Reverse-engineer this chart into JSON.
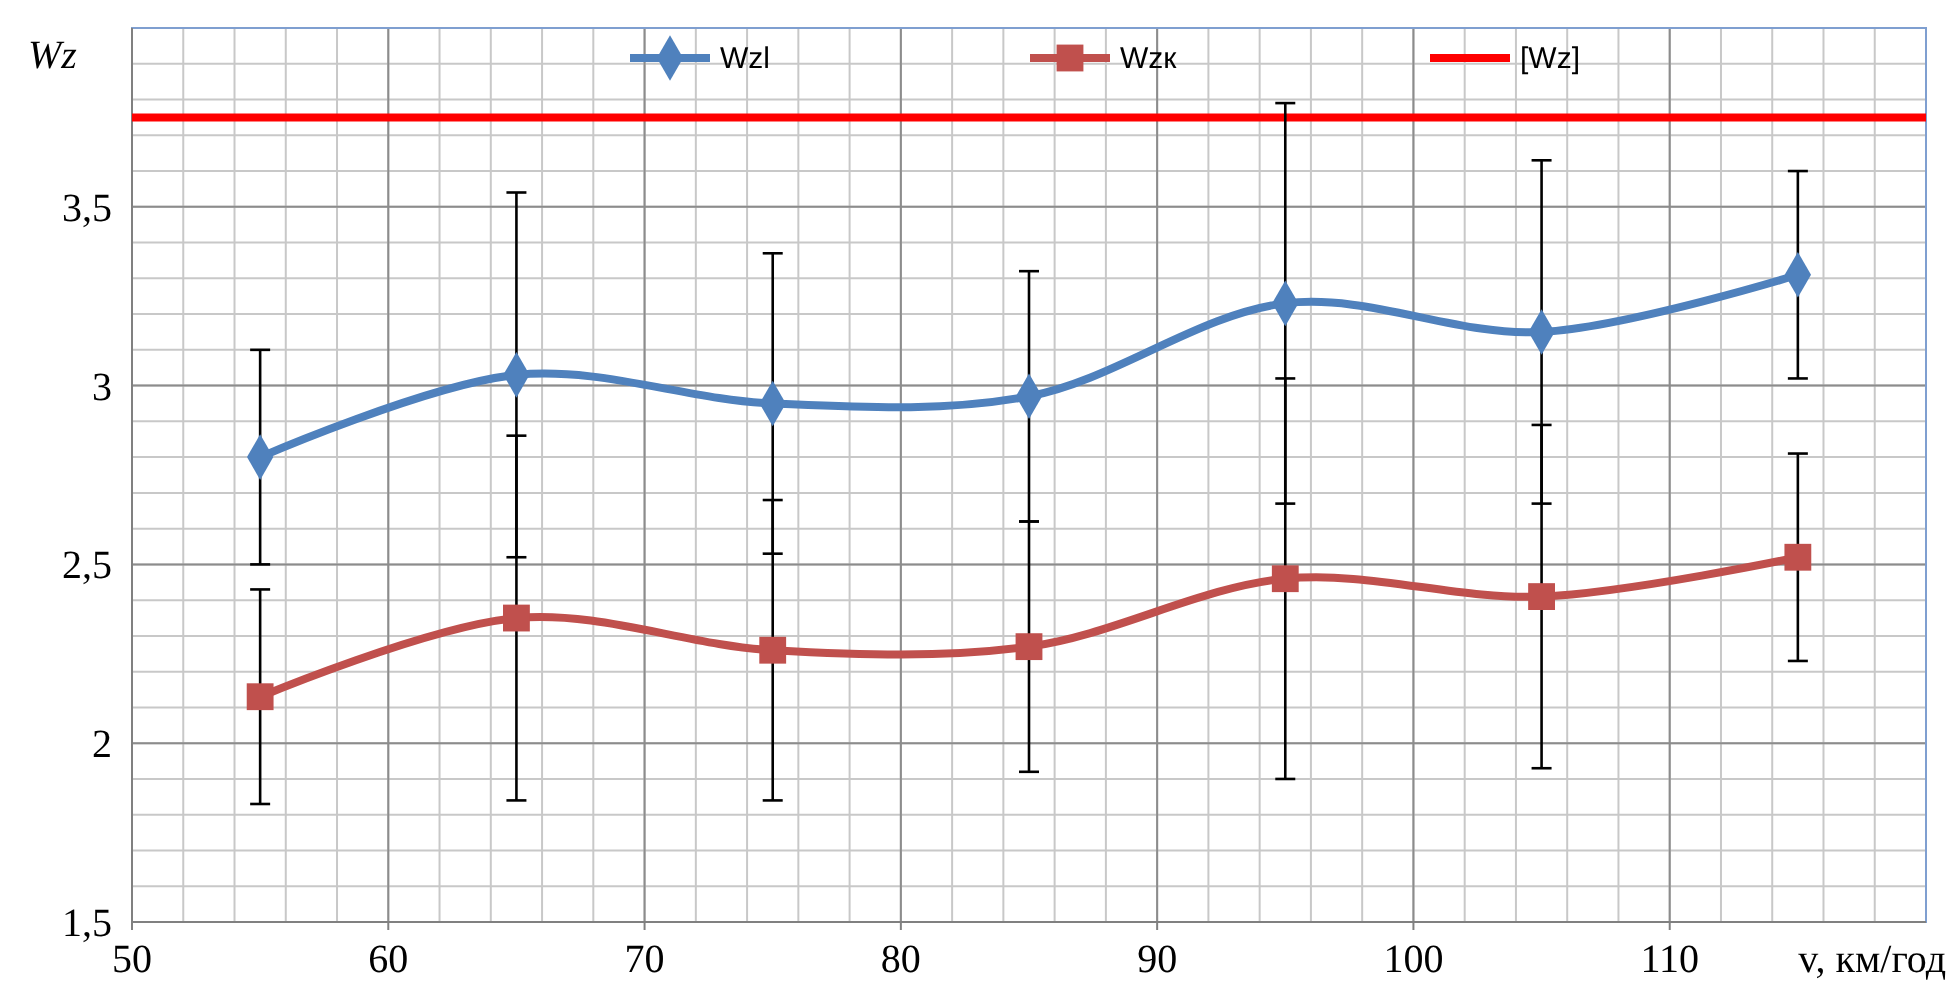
{
  "chart_data": {
    "type": "line",
    "ylabel": "Wz",
    "xlabel": "v, км/год",
    "x": [
      55,
      65,
      75,
      85,
      95,
      105,
      115
    ],
    "series": [
      {
        "name": "Wzl",
        "color": "#4f81bd",
        "values": [
          2.8,
          3.03,
          2.95,
          2.97,
          3.23,
          3.15,
          3.31
        ],
        "errors": [
          0.3,
          0.51,
          0.42,
          0.35,
          0.56,
          0.48,
          0.29
        ],
        "marker": "diamond"
      },
      {
        "name": "Wzк",
        "color": "#c0504d",
        "values": [
          2.13,
          2.35,
          2.26,
          2.27,
          2.46,
          2.41,
          2.52
        ],
        "errors": [
          0.3,
          0.51,
          0.42,
          0.35,
          0.56,
          0.48,
          0.29
        ],
        "marker": "square"
      }
    ],
    "ref_lines": [
      {
        "axis": "y",
        "value": 3.75,
        "label": "[Wz]",
        "color": "#ff0000"
      }
    ],
    "xlim": [
      50,
      120
    ],
    "xticks": [
      50,
      60,
      70,
      80,
      90,
      100,
      110
    ],
    "ylim": [
      1.5,
      4
    ],
    "yticks": [
      {
        "value": 1.5,
        "label": "1,5"
      },
      2,
      {
        "value": 2.5,
        "label": "2,5"
      },
      3,
      {
        "value": 3.5,
        "label": "3,5"
      }
    ],
    "grid": true,
    "legend": "top",
    "line_style": "solid"
  }
}
